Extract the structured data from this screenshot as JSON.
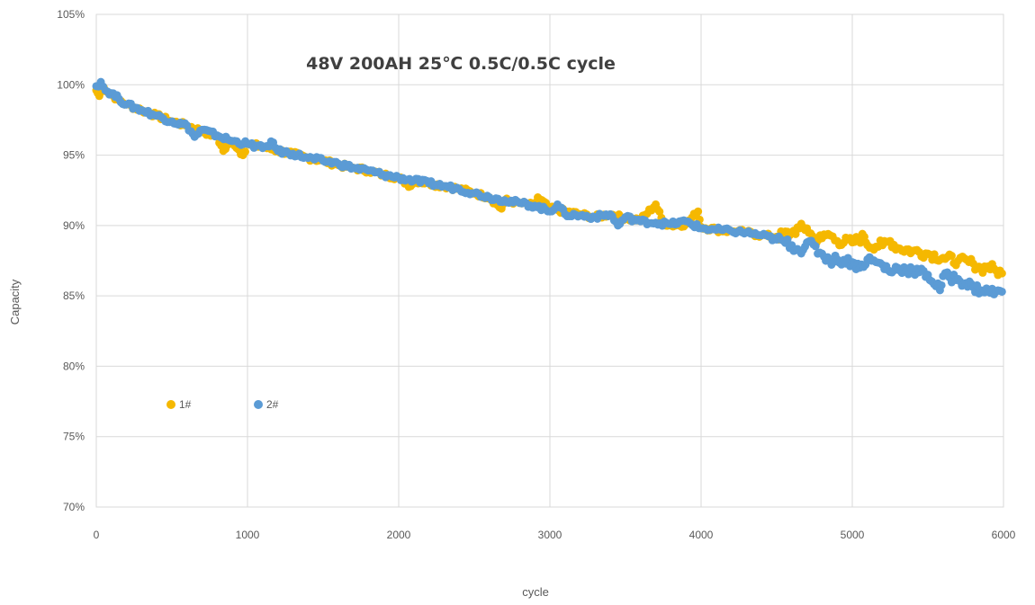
{
  "chart_data": {
    "type": "scatter",
    "title": "48V 200AH 25℃ 0.5C/0.5C cycle",
    "xlabel": "cycle",
    "ylabel": "Capacity",
    "xlim": [
      0,
      6000
    ],
    "ylim": [
      70,
      105
    ],
    "x_ticks": [
      "0",
      "1000",
      "2000",
      "3000",
      "4000",
      "5000",
      "6000"
    ],
    "y_ticks": [
      "70%",
      "75%",
      "80%",
      "85%",
      "90%",
      "95%",
      "100%",
      "105%"
    ],
    "grid": true,
    "legend_position": "lower-left",
    "colors": {
      "1#": "#F5B800",
      "2#": "#5B9BD5"
    },
    "series": [
      {
        "name": "1#",
        "color": "#F5B800",
        "points": [
          [
            0,
            99.6
          ],
          [
            20,
            99.2
          ],
          [
            50,
            99.8
          ],
          [
            100,
            99.3
          ],
          [
            150,
            98.9
          ],
          [
            200,
            98.6
          ],
          [
            300,
            98.2
          ],
          [
            400,
            97.8
          ],
          [
            500,
            97.4
          ],
          [
            600,
            97.1
          ],
          [
            700,
            96.7
          ],
          [
            800,
            96.3
          ],
          [
            840,
            95.3
          ],
          [
            900,
            96.0
          ],
          [
            970,
            95.0
          ],
          [
            1000,
            95.8
          ],
          [
            1100,
            95.6
          ],
          [
            1200,
            95.3
          ],
          [
            1300,
            95.1
          ],
          [
            1400,
            94.8
          ],
          [
            1500,
            94.6
          ],
          [
            1600,
            94.3
          ],
          [
            1700,
            94.1
          ],
          [
            1800,
            93.9
          ],
          [
            1900,
            93.6
          ],
          [
            2000,
            93.4
          ],
          [
            2080,
            92.8
          ],
          [
            2100,
            93.2
          ],
          [
            2200,
            93.0
          ],
          [
            2300,
            92.8
          ],
          [
            2400,
            92.6
          ],
          [
            2500,
            92.3
          ],
          [
            2600,
            92.0
          ],
          [
            2680,
            91.2
          ],
          [
            2700,
            91.8
          ],
          [
            2800,
            91.6
          ],
          [
            2900,
            91.4
          ],
          [
            2920,
            92.0
          ],
          [
            3000,
            91.2
          ],
          [
            3100,
            91.0
          ],
          [
            3200,
            90.8
          ],
          [
            3300,
            90.6
          ],
          [
            3400,
            90.8
          ],
          [
            3500,
            90.5
          ],
          [
            3600,
            90.4
          ],
          [
            3700,
            91.5
          ],
          [
            3750,
            90.2
          ],
          [
            3800,
            90.0
          ],
          [
            3900,
            90.1
          ],
          [
            3980,
            91.0
          ],
          [
            4000,
            89.9
          ],
          [
            4100,
            89.7
          ],
          [
            4200,
            89.6
          ],
          [
            4300,
            89.5
          ],
          [
            4400,
            89.3
          ],
          [
            4500,
            89.2
          ],
          [
            4600,
            89.5
          ],
          [
            4650,
            89.8
          ],
          [
            4700,
            89.8
          ],
          [
            4750,
            89.0
          ],
          [
            4800,
            89.1
          ],
          [
            4840,
            89.4
          ],
          [
            4900,
            88.9
          ],
          [
            5000,
            88.8
          ],
          [
            5080,
            89.2
          ],
          [
            5100,
            88.6
          ],
          [
            5200,
            88.6
          ],
          [
            5250,
            88.9
          ],
          [
            5300,
            88.4
          ],
          [
            5400,
            88.2
          ],
          [
            5500,
            88.0
          ],
          [
            5600,
            87.7
          ],
          [
            5700,
            87.5
          ],
          [
            5800,
            87.3
          ],
          [
            5850,
            86.9
          ],
          [
            5900,
            87.1
          ],
          [
            5950,
            86.8
          ],
          [
            5990,
            86.6
          ]
        ]
      },
      {
        "name": "2#",
        "color": "#5B9BD5",
        "points": [
          [
            0,
            99.9
          ],
          [
            30,
            100.2
          ],
          [
            60,
            99.6
          ],
          [
            100,
            99.4
          ],
          [
            150,
            99.0
          ],
          [
            200,
            98.6
          ],
          [
            300,
            98.2
          ],
          [
            400,
            97.8
          ],
          [
            500,
            97.4
          ],
          [
            600,
            97.1
          ],
          [
            650,
            96.3
          ],
          [
            700,
            96.8
          ],
          [
            800,
            96.4
          ],
          [
            900,
            96.0
          ],
          [
            1000,
            95.8
          ],
          [
            1100,
            95.5
          ],
          [
            1170,
            95.9
          ],
          [
            1200,
            95.3
          ],
          [
            1300,
            95.1
          ],
          [
            1400,
            94.8
          ],
          [
            1500,
            94.6
          ],
          [
            1600,
            94.4
          ],
          [
            1700,
            94.1
          ],
          [
            1800,
            93.9
          ],
          [
            1900,
            93.6
          ],
          [
            2000,
            93.4
          ],
          [
            2100,
            93.2
          ],
          [
            2200,
            93.0
          ],
          [
            2300,
            92.8
          ],
          [
            2400,
            92.6
          ],
          [
            2500,
            92.3
          ],
          [
            2600,
            92.0
          ],
          [
            2700,
            91.8
          ],
          [
            2800,
            91.6
          ],
          [
            2900,
            91.4
          ],
          [
            3000,
            91.0
          ],
          [
            3050,
            91.5
          ],
          [
            3100,
            90.8
          ],
          [
            3200,
            90.7
          ],
          [
            3300,
            90.6
          ],
          [
            3400,
            90.8
          ],
          [
            3450,
            90.0
          ],
          [
            3500,
            90.6
          ],
          [
            3600,
            90.3
          ],
          [
            3700,
            90.2
          ],
          [
            3800,
            90.1
          ],
          [
            3900,
            90.3
          ],
          [
            4000,
            89.8
          ],
          [
            4100,
            89.7
          ],
          [
            4200,
            89.6
          ],
          [
            4300,
            89.5
          ],
          [
            4400,
            89.3
          ],
          [
            4500,
            89.0
          ],
          [
            4600,
            88.6
          ],
          [
            4650,
            88.2
          ],
          [
            4700,
            88.8
          ],
          [
            4800,
            88.0
          ],
          [
            4850,
            87.5
          ],
          [
            4900,
            87.6
          ],
          [
            5000,
            87.4
          ],
          [
            5050,
            87.0
          ],
          [
            5100,
            87.6
          ],
          [
            5200,
            87.2
          ],
          [
            5250,
            86.7
          ],
          [
            5300,
            87.0
          ],
          [
            5400,
            86.8
          ],
          [
            5500,
            86.5
          ],
          [
            5580,
            85.4
          ],
          [
            5600,
            86.4
          ],
          [
            5700,
            86.2
          ],
          [
            5750,
            85.9
          ],
          [
            5800,
            85.6
          ],
          [
            5850,
            85.4
          ],
          [
            5900,
            85.3
          ],
          [
            5950,
            85.3
          ],
          [
            5990,
            85.3
          ]
        ]
      }
    ]
  }
}
